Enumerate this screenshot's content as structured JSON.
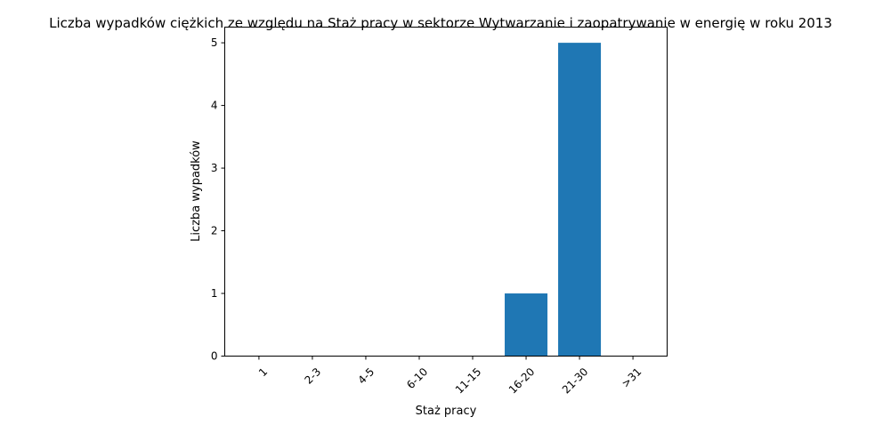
{
  "chart_data": {
    "type": "bar",
    "title": "Liczba wypadków ciężkich ze względu na Staż pracy w sektorze Wytwarzanie i zaopatrywanie w energię w roku 2013",
    "xlabel": "Staż pracy",
    "ylabel": "Liczba wypadków",
    "categories": [
      "1",
      "2-3",
      "4-5",
      "6-10",
      "11-15",
      "16-20",
      "21-30",
      ">31"
    ],
    "values": [
      0,
      0,
      0,
      0,
      0,
      1,
      5,
      0
    ],
    "ylim": [
      0,
      5.25
    ],
    "yticks": [
      0,
      1,
      2,
      3,
      4,
      5
    ],
    "bar_color": "#1f77b4",
    "grid": false
  }
}
